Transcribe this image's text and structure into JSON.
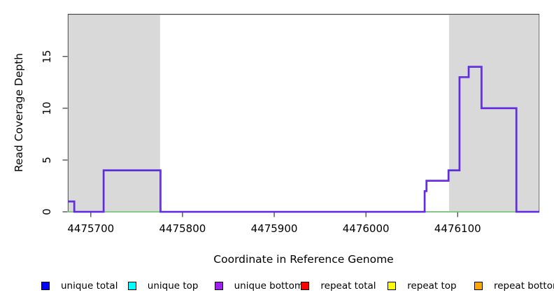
{
  "chart_data": {
    "type": "line",
    "subtype": "step-coverage",
    "title": "",
    "xlabel": "Coordinate in Reference Genome",
    "ylabel": "Read Coverage Depth",
    "xlim": [
      4475675,
      4476189
    ],
    "ylim": [
      0,
      19.1
    ],
    "x_ticks": [
      4475700,
      4475800,
      4475900,
      4476000,
      4476100
    ],
    "y_ticks": [
      0,
      5,
      10,
      15
    ],
    "grid": false,
    "colors": {
      "background": "#ffffff",
      "frame": "#454545",
      "tick": "#454545",
      "shaded_region": "#d9d9d9",
      "baseline_green": "#6fc76f",
      "coverage_line_under": "#2a22e0",
      "coverage_line_over": "#8a2be2"
    },
    "shaded_regions": [
      {
        "name": "repeat-region-left",
        "x_start": 4475675,
        "x_end": 4475776
      },
      {
        "name": "repeat-region-right",
        "x_start": 4476090,
        "x_end": 4476189
      }
    ],
    "series": [
      {
        "name": "unique bottom coverage",
        "plateaus": [
          {
            "start": 4475675,
            "end": 4475682,
            "depth": 1
          },
          {
            "start": 4475682,
            "end": 4475714,
            "depth": 0
          },
          {
            "start": 4475714,
            "end": 4475776,
            "depth": 4
          },
          {
            "start": 4475776,
            "end": 4476064,
            "depth": 0
          },
          {
            "start": 4476064,
            "end": 4476066,
            "depth": 2
          },
          {
            "start": 4476066,
            "end": 4476090,
            "depth": 3
          },
          {
            "start": 4476090,
            "end": 4476102,
            "depth": 4
          },
          {
            "start": 4476102,
            "end": 4476112,
            "depth": 13
          },
          {
            "start": 4476112,
            "end": 4476126,
            "depth": 14
          },
          {
            "start": 4476126,
            "end": 4476164,
            "depth": 10
          },
          {
            "start": 4476164,
            "end": 4476189,
            "depth": 0
          }
        ]
      },
      {
        "name": "zero baseline",
        "plateaus": [
          {
            "start": 4475675,
            "end": 4476189,
            "depth": 0
          }
        ]
      }
    ],
    "legend": {
      "position": "bottom",
      "entries": [
        {
          "label": "unique total",
          "color": "#0000ff"
        },
        {
          "label": "unique top",
          "color": "#00ffff"
        },
        {
          "label": "unique bottom",
          "color": "#a020f0"
        },
        {
          "label": "repeat total",
          "color": "#ff0000"
        },
        {
          "label": "repeat top",
          "color": "#ffff00"
        },
        {
          "label": "repeat bottom",
          "color": "#ffa500"
        }
      ]
    }
  }
}
